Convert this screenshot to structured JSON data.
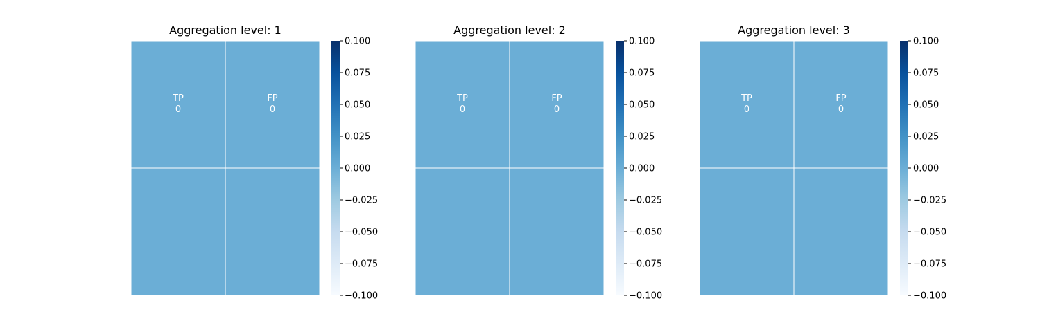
{
  "chart_data": [
    {
      "type": "heatmap",
      "title": "Aggregation level: 1",
      "cmap": "Blues",
      "cell_color": "#6baed6",
      "rows": 2,
      "cols": 2,
      "cells": [
        {
          "row": 0,
          "col": 0,
          "label": "TP",
          "value": "0"
        },
        {
          "row": 0,
          "col": 1,
          "label": "FP",
          "value": "0"
        },
        {
          "row": 1,
          "col": 0,
          "label": "",
          "value": ""
        },
        {
          "row": 1,
          "col": 1,
          "label": "",
          "value": ""
        }
      ],
      "colorbar": {
        "range": [
          -0.1,
          0.1
        ],
        "ticks": [
          "0.100",
          "0.075",
          "0.050",
          "0.025",
          "0.000",
          "−0.025",
          "−0.050",
          "−0.075",
          "−0.100"
        ]
      }
    },
    {
      "type": "heatmap",
      "title": "Aggregation level: 2",
      "cmap": "Blues",
      "cell_color": "#6baed6",
      "rows": 2,
      "cols": 2,
      "cells": [
        {
          "row": 0,
          "col": 0,
          "label": "TP",
          "value": "0"
        },
        {
          "row": 0,
          "col": 1,
          "label": "FP",
          "value": "0"
        },
        {
          "row": 1,
          "col": 0,
          "label": "",
          "value": ""
        },
        {
          "row": 1,
          "col": 1,
          "label": "",
          "value": ""
        }
      ],
      "colorbar": {
        "range": [
          -0.1,
          0.1
        ],
        "ticks": [
          "0.100",
          "0.075",
          "0.050",
          "0.025",
          "0.000",
          "−0.025",
          "−0.050",
          "−0.075",
          "−0.100"
        ]
      }
    },
    {
      "type": "heatmap",
      "title": "Aggregation level: 3",
      "cmap": "Blues",
      "cell_color": "#6baed6",
      "rows": 2,
      "cols": 2,
      "cells": [
        {
          "row": 0,
          "col": 0,
          "label": "TP",
          "value": "0"
        },
        {
          "row": 0,
          "col": 1,
          "label": "FP",
          "value": "0"
        },
        {
          "row": 1,
          "col": 0,
          "label": "",
          "value": ""
        },
        {
          "row": 1,
          "col": 1,
          "label": "",
          "value": ""
        }
      ],
      "colorbar": {
        "range": [
          -0.1,
          0.1
        ],
        "ticks": [
          "0.100",
          "0.075",
          "0.050",
          "0.025",
          "0.000",
          "−0.025",
          "−0.050",
          "−0.075",
          "−0.100"
        ]
      }
    }
  ]
}
